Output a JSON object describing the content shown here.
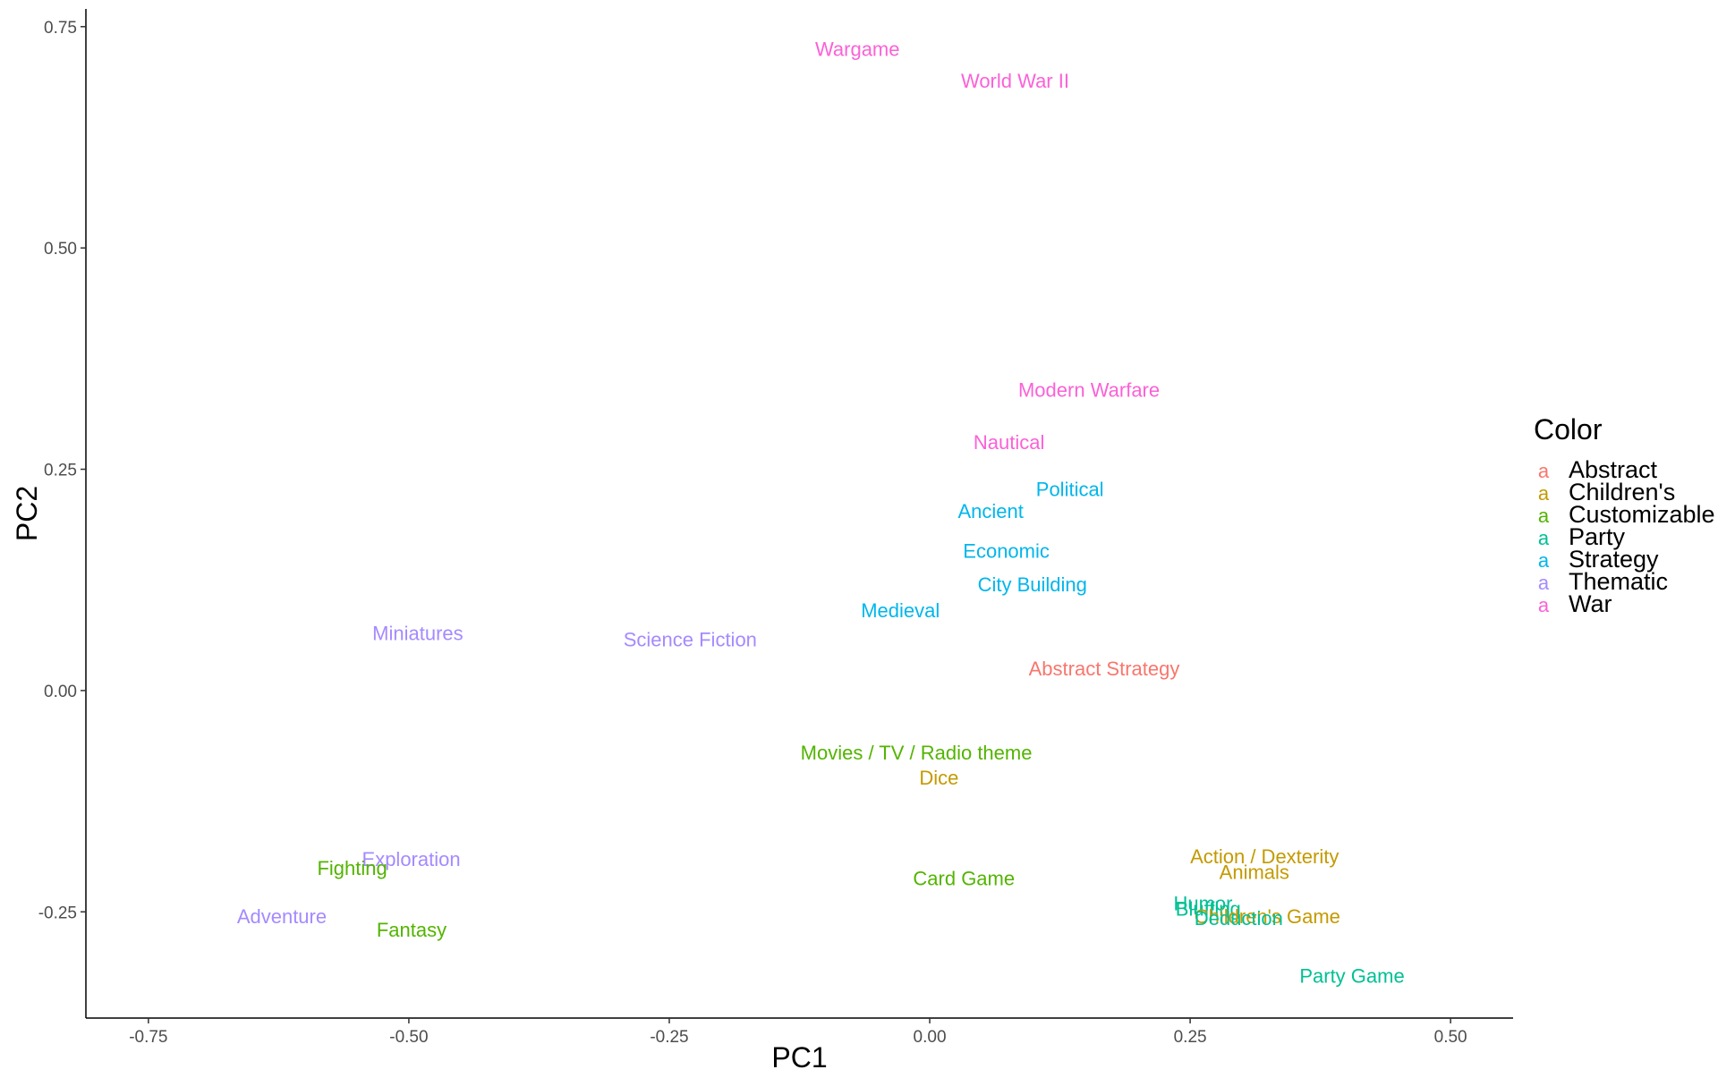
{
  "chart_data": {
    "type": "scatter",
    "mark": "text",
    "xlabel": "PC1",
    "ylabel": "PC2",
    "xlim": [
      -0.81,
      0.56
    ],
    "ylim": [
      -0.37,
      0.77
    ],
    "x_ticks": [
      -0.75,
      -0.5,
      -0.25,
      0.0,
      0.25,
      0.5
    ],
    "x_tick_labels": [
      "-0.75",
      "-0.50",
      "-0.25",
      "0.00",
      "0.25",
      "0.50"
    ],
    "y_ticks": [
      -0.25,
      0.0,
      0.25,
      0.5,
      0.75
    ],
    "y_tick_labels": [
      "-0.25",
      "0.00",
      "0.25",
      "0.50",
      "0.75"
    ],
    "grid": false,
    "legend": {
      "title": "Color",
      "placement": "right",
      "key_glyph": "a",
      "entries": [
        {
          "name": "Abstract",
          "color": "#F8766D"
        },
        {
          "name": "Children's",
          "color": "#C49A00"
        },
        {
          "name": "Customizable",
          "color": "#53B400"
        },
        {
          "name": "Party",
          "color": "#00C094"
        },
        {
          "name": "Strategy",
          "color": "#00B6EB"
        },
        {
          "name": "Thematic",
          "color": "#A58AFF"
        },
        {
          "name": "War",
          "color": "#FB61D7"
        }
      ]
    },
    "points": [
      {
        "label": "Wargame",
        "x": -0.11,
        "y": 0.725,
        "group": "War"
      },
      {
        "label": "World War II",
        "x": 0.03,
        "y": 0.689,
        "group": "War"
      },
      {
        "label": "Modern Warfare",
        "x": 0.085,
        "y": 0.34,
        "group": "War"
      },
      {
        "label": "Nautical",
        "x": 0.042,
        "y": 0.281,
        "group": "War"
      },
      {
        "label": "Political",
        "x": 0.102,
        "y": 0.228,
        "group": "Strategy"
      },
      {
        "label": "Ancient",
        "x": 0.027,
        "y": 0.203,
        "group": "Strategy"
      },
      {
        "label": "Economic",
        "x": 0.032,
        "y": 0.158,
        "group": "Strategy"
      },
      {
        "label": "City Building",
        "x": 0.046,
        "y": 0.12,
        "group": "Strategy"
      },
      {
        "label": "Medieval",
        "x": -0.066,
        "y": 0.091,
        "group": "Strategy"
      },
      {
        "label": "Miniatures",
        "x": -0.535,
        "y": 0.065,
        "group": "Thematic"
      },
      {
        "label": "Science Fiction",
        "x": -0.294,
        "y": 0.058,
        "group": "Thematic"
      },
      {
        "label": "Abstract Strategy",
        "x": 0.095,
        "y": 0.025,
        "group": "Abstract"
      },
      {
        "label": "Movies / TV / Radio theme",
        "x": -0.124,
        "y": -0.07,
        "group": "Customizable"
      },
      {
        "label": "Dice",
        "x": -0.01,
        "y": -0.098,
        "group": "Children's"
      },
      {
        "label": "Exploration",
        "x": -0.545,
        "y": -0.19,
        "group": "Thematic"
      },
      {
        "label": "Fighting",
        "x": -0.588,
        "y": -0.2,
        "group": "Customizable"
      },
      {
        "label": "Card Game",
        "x": -0.016,
        "y": -0.212,
        "group": "Customizable"
      },
      {
        "label": "Action / Dexterity",
        "x": 0.25,
        "y": -0.187,
        "group": "Children's"
      },
      {
        "label": "Animals",
        "x": 0.278,
        "y": -0.205,
        "group": "Children's"
      },
      {
        "label": "Humor",
        "x": 0.234,
        "y": -0.24,
        "group": "Party"
      },
      {
        "label": "Bluffing",
        "x": 0.236,
        "y": -0.246,
        "group": "Party"
      },
      {
        "label": "Children's Game",
        "x": 0.254,
        "y": -0.255,
        "group": "Children's"
      },
      {
        "label": "Deduction",
        "x": 0.254,
        "y": -0.257,
        "group": "Party"
      },
      {
        "label": "Adventure",
        "x": -0.665,
        "y": -0.255,
        "group": "Thematic"
      },
      {
        "label": "Fantasy",
        "x": -0.531,
        "y": -0.27,
        "group": "Customizable"
      },
      {
        "label": "Party Game",
        "x": 0.355,
        "y": -0.322,
        "group": "Party"
      }
    ]
  }
}
